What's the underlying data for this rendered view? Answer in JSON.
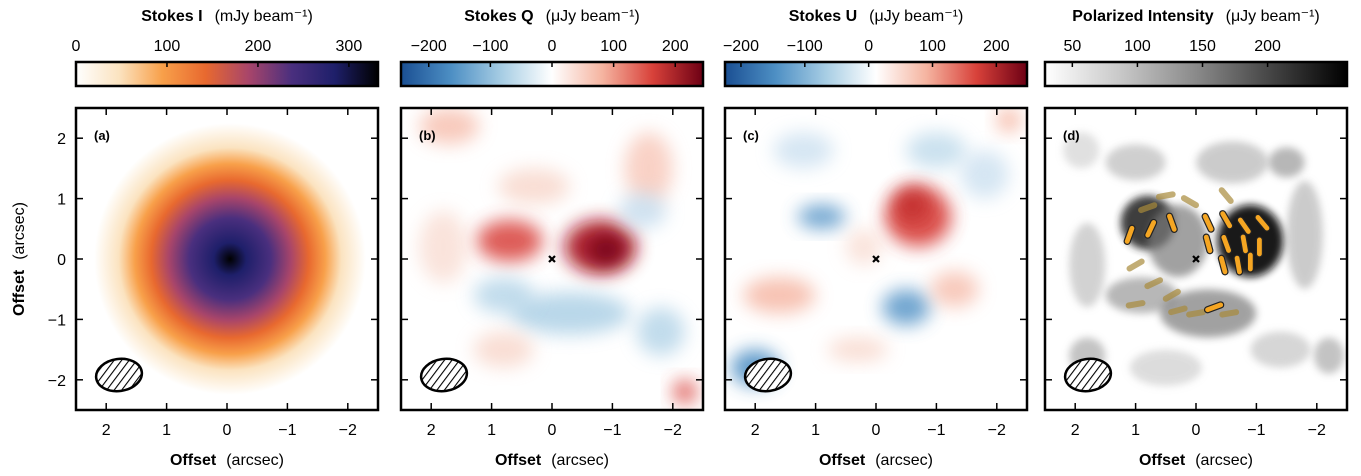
{
  "chart_data": [
    {
      "type": "image",
      "title": "Stokes I",
      "unit": "(mJy beam⁻¹)",
      "panel_label": "(a)",
      "clim": [
        0,
        332
      ],
      "cticks": [
        0,
        100,
        200,
        300
      ],
      "cmap": [
        "#ffffff",
        "#fbe3c0",
        "#f8a04a",
        "#e8692f",
        "#a8456a",
        "#4a2f7e",
        "#1e1f6a",
        "#000000"
      ],
      "xlabel": "Offset",
      "xunit": "(arcsec)",
      "ylabel": "Offset",
      "yunit": "(arcsec)",
      "xlim": [
        2.5,
        -2.5
      ],
      "xticks": [
        2,
        1,
        0,
        {
          "value": -1,
          "label": "−1"
        },
        {
          "value": -2,
          "label": "−2"
        }
      ],
      "ylim": [
        -2.5,
        2.5
      ],
      "yticks": [
        2,
        1,
        0,
        {
          "value": -1,
          "label": "−1"
        },
        {
          "value": -2,
          "label": "−2"
        }
      ]
    },
    {
      "type": "image",
      "title": "Stokes Q",
      "unit": "(μJy beam⁻¹)",
      "panel_label": "(b)",
      "clim": [
        -245,
        245
      ],
      "cticks": [
        {
          "value": -200,
          "label": "−200"
        },
        {
          "value": -100,
          "label": "−100"
        },
        0,
        100,
        200
      ],
      "cmap": [
        "#1a4f93",
        "#4d8fc4",
        "#a7cde4",
        "#ffffff",
        "#f5b4a0",
        "#d8413a",
        "#6d0014"
      ],
      "xlabel": "Offset",
      "xunit": "(arcsec)",
      "xlim": [
        2.5,
        -2.5
      ],
      "xticks": [
        2,
        1,
        0,
        {
          "value": -1,
          "label": "−1"
        },
        {
          "value": -2,
          "label": "−2"
        }
      ],
      "ylim": [
        -2.5,
        2.5
      ],
      "yticks": [
        2,
        1,
        0,
        -1,
        -2
      ]
    },
    {
      "type": "image",
      "title": "Stokes U",
      "unit": "(μJy beam⁻¹)",
      "panel_label": "(c)",
      "clim": [
        -225,
        248
      ],
      "cticks": [
        {
          "value": -200,
          "label": "−200"
        },
        {
          "value": -100,
          "label": "−100"
        },
        0,
        100,
        200
      ],
      "cmap": [
        "#1a4f93",
        "#4d8fc4",
        "#a7cde4",
        "#ffffff",
        "#f5b4a0",
        "#d8413a",
        "#6d0014"
      ],
      "xlabel": "Offset",
      "xunit": "(arcsec)",
      "xlim": [
        2.5,
        -2.5
      ],
      "xticks": [
        2,
        1,
        0,
        {
          "value": -1,
          "label": "−1"
        },
        {
          "value": -2,
          "label": "−2"
        }
      ],
      "ylim": [
        -2.5,
        2.5
      ],
      "yticks": [
        2,
        1,
        0,
        -1,
        -2
      ]
    },
    {
      "type": "image",
      "title": "Polarized Intensity",
      "unit": "(μJy beam⁻¹)",
      "panel_label": "(d)",
      "clim": [
        29,
        261
      ],
      "cticks": [
        50,
        100,
        150,
        200
      ],
      "cmap": [
        "#ffffff",
        "#c8c8c8",
        "#8a8a8a",
        "#444444",
        "#000000"
      ],
      "xlabel": "Offset",
      "xunit": "(arcsec)",
      "xlim": [
        2.5,
        -2.5
      ],
      "xticks": [
        2,
        1,
        0,
        {
          "value": -1,
          "label": "−1"
        },
        {
          "value": -2,
          "label": "−2"
        }
      ],
      "ylim": [
        -2.5,
        2.5
      ],
      "yticks": [
        2,
        1,
        0,
        -1,
        -2
      ]
    }
  ]
}
